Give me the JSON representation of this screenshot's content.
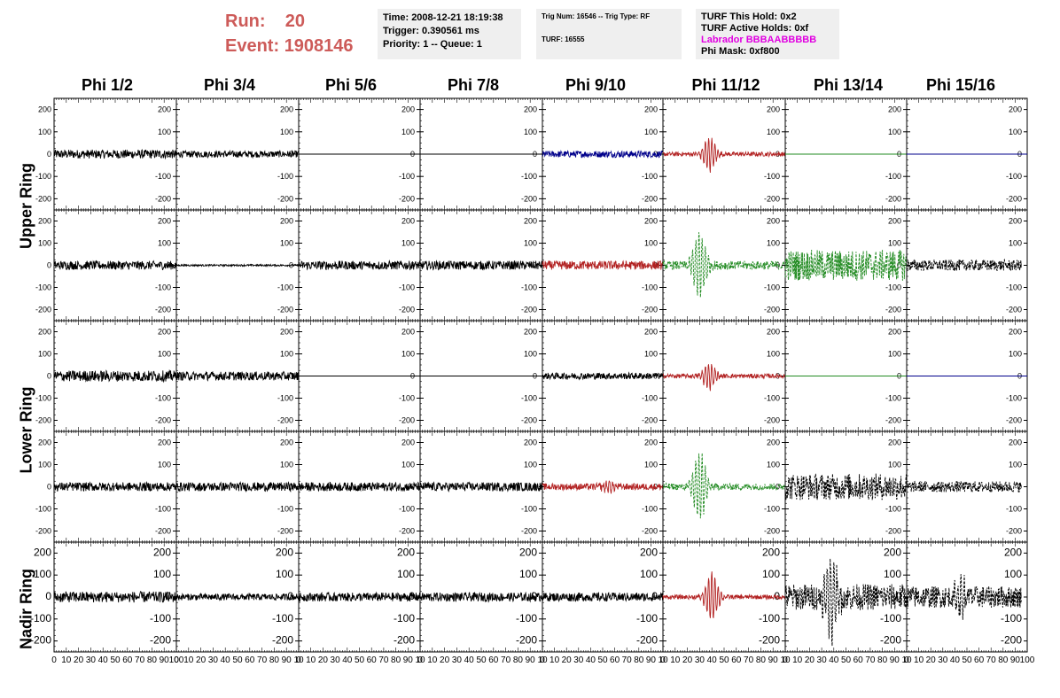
{
  "header": {
    "run_label": "Run:",
    "run_value": "20",
    "event_label": "Event:",
    "event_value": "1908146"
  },
  "info1": {
    "time": "Time: 2008-12-21 18:19:38",
    "trigger": "Trigger: 0.390561 ms",
    "priority": "Priority: 1 -- Queue: 1"
  },
  "info2": {
    "trig": "Trig Num: 16546 -- Trig Type: RF",
    "turf": "TURF: 16555"
  },
  "info3": {
    "hold": "TURF This Hold: 0x2",
    "active": "TURF Active Holds: 0xf",
    "labrador": "Labrador BBBAABBBBB",
    "mask": "Phi Mask: 0xf800"
  },
  "colors": {
    "title": "#cd5b59",
    "magenta": "#e100e1",
    "black": "#000000",
    "red": "#b22222",
    "green": "#228b22",
    "blue": "#00008b"
  },
  "chart_data": {
    "type": "line",
    "columns": [
      "Phi 1/2",
      "Phi 3/4",
      "Phi 5/6",
      "Phi 7/8",
      "Phi 9/10",
      "Phi 11/12",
      "Phi 13/14",
      "Phi 15/16"
    ],
    "ring_labels": [
      "Upper Ring",
      "Lower Ring",
      "Nadir Ring"
    ],
    "xlim": [
      0,
      100
    ],
    "ylim": [
      -250,
      250
    ],
    "yticks": [
      -200,
      -100,
      0,
      100,
      200
    ],
    "xticks_first": [
      "0",
      "10",
      "20",
      "30",
      "40",
      "50",
      "60",
      "70",
      "80",
      "90",
      "100"
    ],
    "xticks_other": [
      "0",
      "10",
      "20",
      "30",
      "40",
      "50",
      "60",
      "70",
      "80",
      "90",
      "10"
    ],
    "xticks_last": [
      "0",
      "10",
      "20",
      "30",
      "40",
      "50",
      "60",
      "70",
      "80",
      "90",
      "100"
    ],
    "grid": false,
    "panels": [
      [
        {
          "color": "black",
          "amp": 20,
          "style": "solid",
          "flat": false
        },
        {
          "color": "black",
          "amp": 15,
          "style": "solid",
          "flat": false
        },
        {
          "color": "black",
          "amp": 0,
          "style": "solid",
          "flat": true
        },
        {
          "color": "black",
          "amp": 0,
          "style": "solid",
          "flat": true
        },
        {
          "color": "blue",
          "amp": 15,
          "style": "solid",
          "flat": false
        },
        {
          "color": "red",
          "amp": 10,
          "style": "solid",
          "flat": false,
          "pulse": 75,
          "pulse_center": 38
        },
        {
          "color": "green",
          "amp": 0,
          "style": "solid",
          "flat": true
        },
        {
          "color": "blue",
          "amp": 0,
          "style": "solid",
          "flat": true,
          "span": [
            0,
            100
          ]
        }
      ],
      [
        {
          "color": "black",
          "amp": 20,
          "style": "solid",
          "flat": false
        },
        {
          "color": "black",
          "amp": 4,
          "style": "solid",
          "flat": false
        },
        {
          "color": "black",
          "amp": 20,
          "style": "solid",
          "flat": false
        },
        {
          "color": "black",
          "amp": 20,
          "style": "solid",
          "flat": false
        },
        {
          "color": "red",
          "amp": 20,
          "style": "solid",
          "flat": false
        },
        {
          "color": "green",
          "amp": 20,
          "style": "dashed",
          "flat": false,
          "pulse": 150,
          "pulse_center": 30
        },
        {
          "color": "green",
          "amp": 70,
          "style": "dashed",
          "flat": false
        },
        {
          "color": "black",
          "amp": 25,
          "style": "dashed",
          "flat": false,
          "span": [
            0,
            95
          ]
        }
      ],
      [
        {
          "color": "black",
          "amp": 25,
          "style": "solid",
          "flat": false
        },
        {
          "color": "black",
          "amp": 20,
          "style": "solid",
          "flat": false
        },
        {
          "color": "black",
          "amp": 0,
          "style": "solid",
          "flat": true
        },
        {
          "color": "black",
          "amp": 0,
          "style": "solid",
          "flat": true
        },
        {
          "color": "black",
          "amp": 15,
          "style": "solid",
          "flat": false
        },
        {
          "color": "red",
          "amp": 10,
          "style": "solid",
          "flat": false,
          "pulse": 60,
          "pulse_center": 38
        },
        {
          "color": "green",
          "amp": 0,
          "style": "solid",
          "flat": true
        },
        {
          "color": "blue",
          "amp": 0,
          "style": "solid",
          "flat": true,
          "span": [
            0,
            100
          ]
        }
      ],
      [
        {
          "color": "black",
          "amp": 20,
          "style": "solid",
          "flat": false
        },
        {
          "color": "black",
          "amp": 20,
          "style": "solid",
          "flat": false
        },
        {
          "color": "black",
          "amp": 20,
          "style": "solid",
          "flat": false
        },
        {
          "color": "black",
          "amp": 20,
          "style": "solid",
          "flat": false
        },
        {
          "color": "red",
          "amp": 15,
          "style": "solid",
          "flat": false,
          "pulse": 20,
          "pulse_center": 55
        },
        {
          "color": "green",
          "amp": 15,
          "style": "dashed",
          "flat": false,
          "pulse": 160,
          "pulse_center": 30
        },
        {
          "color": "black",
          "amp": 60,
          "style": "dashed",
          "flat": false
        },
        {
          "color": "black",
          "amp": 25,
          "style": "dashed",
          "flat": false,
          "span": [
            0,
            95
          ]
        }
      ],
      [
        {
          "color": "black",
          "amp": 25,
          "style": "solid",
          "flat": false
        },
        {
          "color": "black",
          "amp": 15,
          "style": "solid",
          "flat": false
        },
        {
          "color": "black",
          "amp": 20,
          "style": "solid",
          "flat": false
        },
        {
          "color": "black",
          "amp": 20,
          "style": "solid",
          "flat": false
        },
        {
          "color": "black",
          "amp": 20,
          "style": "solid",
          "flat": false
        },
        {
          "color": "red",
          "amp": 10,
          "style": "solid",
          "flat": false,
          "pulse": 110,
          "pulse_center": 40
        },
        {
          "color": "black",
          "amp": 60,
          "style": "dashed",
          "flat": false,
          "pulse": 180,
          "pulse_center": 38
        },
        {
          "color": "black",
          "amp": 50,
          "style": "dashed",
          "flat": false,
          "pulse": 80,
          "pulse_center": 45,
          "span": [
            0,
            95
          ]
        }
      ]
    ]
  }
}
